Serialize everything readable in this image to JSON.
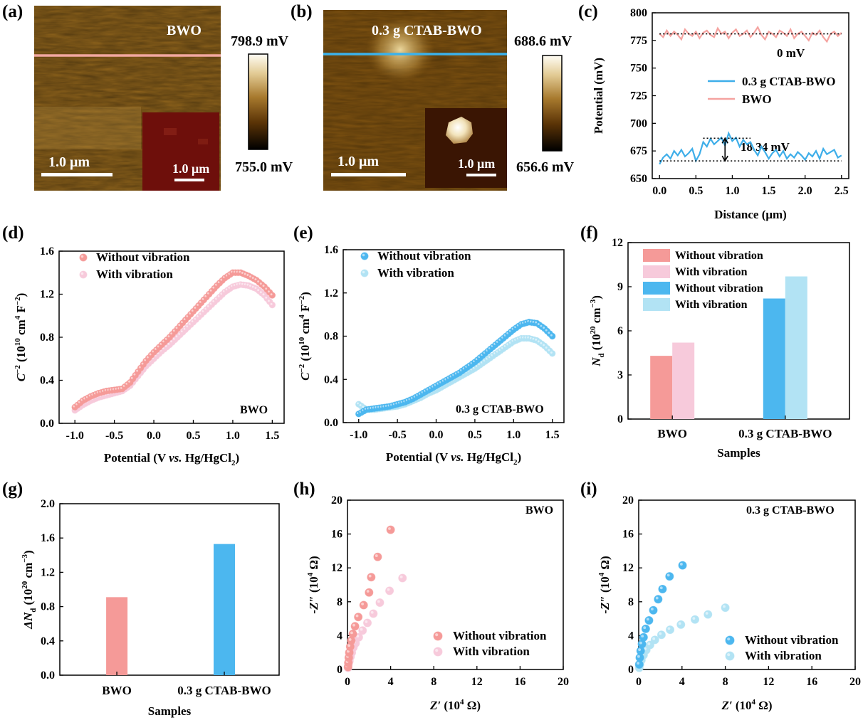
{
  "panels": {
    "a": {
      "label": "(a)",
      "sample": "BWO",
      "scalebar": "1.0 μm",
      "inset_scalebar": "1.0 μm",
      "colorbar_max": "798.9 mV",
      "colorbar_min": "755.0 mV",
      "line_color": "#f2a7a0"
    },
    "b": {
      "label": "(b)",
      "sample": "0.3 g CTAB-BWO",
      "scalebar": "1.0 μm",
      "inset_scalebar": "1.0 μm",
      "colorbar_max": "688.6 mV",
      "colorbar_min": "656.6 mV",
      "line_color": "#3bb2ec"
    },
    "c": {
      "label": "(c)"
    },
    "d": {
      "label": "(d)"
    },
    "e": {
      "label": "(e)"
    },
    "f": {
      "label": "(f)"
    },
    "g": {
      "label": "(g)"
    },
    "h": {
      "label": "(h)"
    },
    "i": {
      "label": "(i)"
    }
  },
  "colors": {
    "bwo": "#f59a98",
    "bwo_light": "#f7cadb",
    "ctab": "#4cb7ef",
    "ctab_light": "#b2e3f4"
  },
  "chart_data": [
    {
      "id": "c",
      "type": "line",
      "xlabel": "Distance (μm)",
      "ylabel": "Potential (mV)",
      "xlim": [
        -0.1,
        2.6
      ],
      "ylim": [
        650,
        800
      ],
      "xticks": [
        0.0,
        0.5,
        1.0,
        1.5,
        2.0,
        2.5
      ],
      "xtick_labels": [
        "0.0",
        "0.5",
        "1.0",
        "1.5",
        "2.0",
        "2.5"
      ],
      "yticks": [
        650,
        675,
        700,
        725,
        750,
        775,
        800
      ],
      "legend": [
        "0.3 g CTAB-BWO",
        "BWO"
      ],
      "legend_placement": "right-middle",
      "series": [
        {
          "name": "BWO",
          "color": "#f5a3a0",
          "x": [
            0.0,
            0.05,
            0.1,
            0.15,
            0.2,
            0.25,
            0.3,
            0.35,
            0.4,
            0.45,
            0.5,
            0.55,
            0.6,
            0.65,
            0.7,
            0.75,
            0.8,
            0.85,
            0.9,
            0.95,
            1.0,
            1.05,
            1.1,
            1.15,
            1.2,
            1.25,
            1.3,
            1.35,
            1.4,
            1.45,
            1.5,
            1.55,
            1.6,
            1.65,
            1.7,
            1.75,
            1.8,
            1.85,
            1.9,
            1.95,
            2.0,
            2.05,
            2.1,
            2.15,
            2.2,
            2.25,
            2.3,
            2.35,
            2.4,
            2.45,
            2.5
          ],
          "y": [
            781,
            778,
            784,
            779,
            783,
            780,
            776,
            785,
            781,
            779,
            783,
            777,
            782,
            784,
            780,
            778,
            786,
            781,
            783,
            777,
            782,
            785,
            779,
            781,
            784,
            778,
            782,
            787,
            780,
            776,
            783,
            781,
            778,
            784,
            782,
            779,
            785,
            777,
            781,
            783,
            779,
            775,
            782,
            780,
            784,
            778,
            774,
            781,
            783,
            779,
            782
          ]
        },
        {
          "name": "0.3 g CTAB-BWO",
          "color": "#3eaee9",
          "x": [
            0.0,
            0.05,
            0.1,
            0.15,
            0.2,
            0.25,
            0.3,
            0.35,
            0.4,
            0.45,
            0.5,
            0.55,
            0.6,
            0.65,
            0.7,
            0.75,
            0.8,
            0.85,
            0.9,
            0.95,
            1.0,
            1.05,
            1.1,
            1.15,
            1.2,
            1.25,
            1.3,
            1.35,
            1.4,
            1.45,
            1.5,
            1.55,
            1.6,
            1.65,
            1.7,
            1.75,
            1.8,
            1.85,
            1.9,
            1.95,
            2.0,
            2.05,
            2.1,
            2.15,
            2.2,
            2.25,
            2.3,
            2.35,
            2.4,
            2.45,
            2.5
          ],
          "y": [
            663,
            669,
            672,
            668,
            675,
            671,
            676,
            670,
            673,
            677,
            666,
            672,
            683,
            679,
            686,
            681,
            684,
            687,
            680,
            691,
            684,
            687,
            679,
            685,
            681,
            683,
            676,
            671,
            679,
            674,
            668,
            673,
            676,
            670,
            675,
            668,
            672,
            669,
            674,
            671,
            667,
            673,
            670,
            675,
            668,
            677,
            672,
            674,
            676,
            669,
            671
          ]
        }
      ],
      "annotations": [
        "0 mV",
        "18.34 mV"
      ]
    },
    {
      "id": "d",
      "type": "scatter",
      "xlabel": "Potential (V vs. Hg/HgCl2)",
      "ylabel": "C−2 (1010 cm4 F−2)",
      "sample_label": "BWO",
      "xlim": [
        -1.2,
        1.65
      ],
      "ylim": [
        0,
        1.6
      ],
      "xticks": [
        -1.0,
        -0.5,
        0.0,
        0.5,
        1.0,
        1.5
      ],
      "xtick_labels": [
        "-1.0",
        "-0.5",
        "0.0",
        "0.5",
        "1.0",
        "1.5"
      ],
      "yticks": [
        0.0,
        0.4,
        0.8,
        1.2,
        1.6
      ],
      "ytick_labels": [
        "0.0",
        "0.4",
        "0.8",
        "1.2",
        "1.6"
      ],
      "legend_placement": "top-left",
      "series": [
        {
          "name": "Without vibration",
          "color": "#f59a98",
          "x": [
            -1.0,
            -0.9,
            -0.8,
            -0.7,
            -0.6,
            -0.5,
            -0.4,
            -0.3,
            -0.2,
            -0.1,
            0.0,
            0.1,
            0.2,
            0.3,
            0.4,
            0.5,
            0.6,
            0.7,
            0.8,
            0.9,
            1.0,
            1.1,
            1.2,
            1.3,
            1.4,
            1.5
          ],
          "y": [
            0.15,
            0.21,
            0.25,
            0.28,
            0.3,
            0.31,
            0.32,
            0.38,
            0.48,
            0.58,
            0.66,
            0.73,
            0.8,
            0.88,
            0.96,
            1.04,
            1.12,
            1.2,
            1.28,
            1.35,
            1.4,
            1.4,
            1.37,
            1.33,
            1.27,
            1.19
          ]
        },
        {
          "name": "With vibration",
          "color": "#f7cadb",
          "x": [
            -1.0,
            -0.9,
            -0.8,
            -0.7,
            -0.6,
            -0.5,
            -0.4,
            -0.3,
            -0.2,
            -0.1,
            0.0,
            0.1,
            0.2,
            0.3,
            0.4,
            0.5,
            0.6,
            0.7,
            0.8,
            0.9,
            1.0,
            1.1,
            1.2,
            1.3,
            1.4,
            1.5
          ],
          "y": [
            0.12,
            0.17,
            0.21,
            0.24,
            0.26,
            0.28,
            0.3,
            0.35,
            0.44,
            0.53,
            0.6,
            0.67,
            0.73,
            0.8,
            0.87,
            0.94,
            1.01,
            1.08,
            1.15,
            1.22,
            1.27,
            1.29,
            1.28,
            1.25,
            1.19,
            1.1
          ]
        }
      ]
    },
    {
      "id": "e",
      "type": "scatter",
      "xlabel": "Potential (V vs. Hg/HgCl2)",
      "ylabel": "C−2 (1010 cm4 F−2)",
      "sample_label": "0.3 g CTAB-BWO",
      "xlim": [
        -1.2,
        1.65
      ],
      "ylim": [
        0,
        1.6
      ],
      "xticks": [
        -1.0,
        -0.5,
        0.0,
        0.5,
        1.0,
        1.5
      ],
      "xtick_labels": [
        "-1.0",
        "-0.5",
        "0.0",
        "0.5",
        "1.0",
        "1.5"
      ],
      "yticks": [
        0.0,
        0.4,
        0.8,
        1.2,
        1.6
      ],
      "ytick_labels": [
        "0.0",
        "0.4",
        "0.8",
        "1.2",
        "1.6"
      ],
      "legend_placement": "top-left",
      "series": [
        {
          "name": "Without vibration",
          "color": "#4cb7ef",
          "x": [
            -1.0,
            -0.9,
            -0.8,
            -0.7,
            -0.6,
            -0.5,
            -0.4,
            -0.3,
            -0.2,
            -0.1,
            0.0,
            0.1,
            0.2,
            0.3,
            0.4,
            0.5,
            0.6,
            0.7,
            0.8,
            0.9,
            1.0,
            1.1,
            1.2,
            1.3,
            1.4,
            1.5
          ],
          "y": [
            0.08,
            0.12,
            0.13,
            0.14,
            0.15,
            0.17,
            0.19,
            0.22,
            0.26,
            0.3,
            0.34,
            0.38,
            0.42,
            0.46,
            0.51,
            0.56,
            0.62,
            0.68,
            0.74,
            0.8,
            0.86,
            0.91,
            0.93,
            0.92,
            0.87,
            0.8
          ]
        },
        {
          "name": "With vibration",
          "color": "#b2e3f4",
          "x": [
            -1.0,
            -0.9,
            -0.8,
            -0.7,
            -0.6,
            -0.5,
            -0.4,
            -0.3,
            -0.2,
            -0.1,
            0.0,
            0.1,
            0.2,
            0.3,
            0.4,
            0.5,
            0.6,
            0.7,
            0.8,
            0.9,
            1.0,
            1.1,
            1.2,
            1.3,
            1.4,
            1.5
          ],
          "y": [
            0.17,
            0.12,
            0.12,
            0.13,
            0.14,
            0.15,
            0.17,
            0.2,
            0.23,
            0.27,
            0.3,
            0.34,
            0.38,
            0.42,
            0.46,
            0.5,
            0.55,
            0.6,
            0.65,
            0.7,
            0.75,
            0.78,
            0.78,
            0.76,
            0.71,
            0.64
          ]
        }
      ]
    },
    {
      "id": "f",
      "type": "bar",
      "xlabel": "Samples",
      "ylabel": "Nd (1020 cm−3)",
      "categories": [
        "BWO",
        "0.3 g CTAB-BWO"
      ],
      "ylim": [
        0,
        12
      ],
      "yticks": [
        0,
        3,
        6,
        9,
        12
      ],
      "legend_placement": "top-left",
      "series": [
        {
          "name": "Without vibration",
          "color": "#f59a98",
          "values": [
            4.3,
            null
          ]
        },
        {
          "name": "With vibration",
          "color": "#f7cadb",
          "values": [
            5.2,
            null
          ]
        },
        {
          "name": "Without vibration",
          "color": "#4cb7ef",
          "values": [
            null,
            8.2
          ]
        },
        {
          "name": "With vibration",
          "color": "#b2e3f4",
          "values": [
            null,
            9.7
          ]
        }
      ]
    },
    {
      "id": "g",
      "type": "bar",
      "xlabel": "Samples",
      "ylabel": "ΔNd (1020 cm−3)",
      "categories": [
        "BWO",
        "0.3 g CTAB-BWO"
      ],
      "values": [
        0.91,
        1.53
      ],
      "colors": [
        "#f59a98",
        "#4cb7ef"
      ],
      "ylim": [
        0,
        2.0
      ],
      "yticks": [
        0.0,
        0.4,
        0.8,
        1.2,
        1.6,
        2.0
      ],
      "ytick_labels": [
        "0.0",
        "0.4",
        "0.8",
        "1.2",
        "1.6",
        "2.0"
      ]
    },
    {
      "id": "h",
      "type": "scatter",
      "xlabel": "Z′ (104 Ω)",
      "ylabel": "-Z″ (104 Ω)",
      "sample_label": "BWO",
      "xlim": [
        0,
        20
      ],
      "ylim": [
        0,
        20
      ],
      "xticks": [
        0,
        4,
        8,
        12,
        16,
        20
      ],
      "yticks": [
        0,
        4,
        8,
        12,
        16,
        20
      ],
      "legend_placement": "bottom-right",
      "series": [
        {
          "name": "Without vibration",
          "color": "#f59a98",
          "x": [
            0.05,
            0.08,
            0.12,
            0.17,
            0.25,
            0.35,
            0.5,
            0.7,
            1.0,
            1.5,
            2.0,
            2.2,
            2.8,
            4.0
          ],
          "y": [
            0.3,
            0.8,
            1.4,
            2.0,
            2.7,
            3.4,
            4.2,
            5.1,
            6.2,
            7.6,
            9.1,
            10.9,
            13.3,
            16.5
          ]
        },
        {
          "name": "With vibration",
          "color": "#f7cadb",
          "x": [
            0.05,
            0.1,
            0.18,
            0.28,
            0.4,
            0.55,
            0.75,
            1.05,
            1.4,
            1.85,
            2.4,
            3.0,
            3.9,
            5.1
          ],
          "y": [
            0.2,
            0.6,
            1.0,
            1.5,
            2.0,
            2.6,
            3.1,
            3.8,
            4.6,
            5.5,
            6.6,
            7.9,
            9.3,
            10.8
          ]
        }
      ]
    },
    {
      "id": "i",
      "type": "scatter",
      "xlabel": "Z′ (104 Ω)",
      "ylabel": "-Z″ (104 Ω)",
      "sample_label": "0.3 g CTAB-BWO",
      "xlim": [
        0,
        20
      ],
      "ylim": [
        0,
        20
      ],
      "xticks": [
        0,
        4,
        8,
        12,
        16,
        20
      ],
      "yticks": [
        0,
        4,
        8,
        12,
        16,
        20
      ],
      "legend_placement": "bottom-right",
      "series": [
        {
          "name": "Without vibration",
          "color": "#4cb7ef",
          "x": [
            0.05,
            0.1,
            0.18,
            0.3,
            0.45,
            0.65,
            0.95,
            1.35,
            1.8,
            2.2,
            2.85,
            4.05
          ],
          "y": [
            0.6,
            1.4,
            2.2,
            3.0,
            3.8,
            4.8,
            5.8,
            7.0,
            8.3,
            9.5,
            11.0,
            12.3
          ]
        },
        {
          "name": "With vibration",
          "color": "#b2e3f4",
          "x": [
            0.05,
            0.12,
            0.25,
            0.45,
            0.7,
            1.05,
            1.5,
            2.1,
            2.9,
            3.9,
            5.2,
            6.4,
            8.0
          ],
          "y": [
            0.2,
            0.6,
            1.1,
            1.7,
            2.3,
            2.9,
            3.5,
            4.1,
            4.7,
            5.3,
            5.9,
            6.5,
            7.3
          ]
        }
      ]
    }
  ]
}
